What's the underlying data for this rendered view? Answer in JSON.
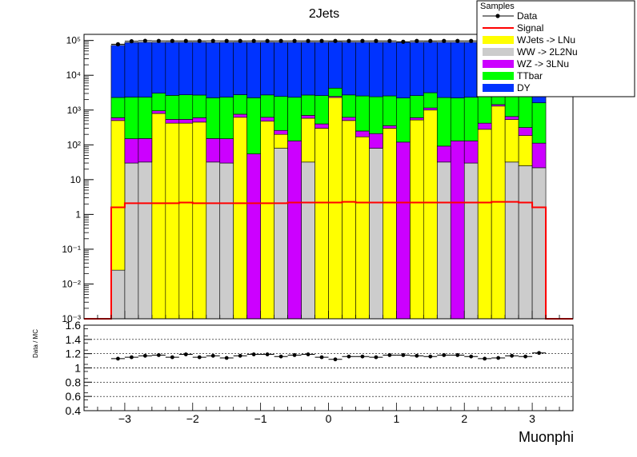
{
  "title": "2Jets",
  "xlabel": "Muonphi",
  "ratio_ylabel": "Data / MC",
  "legend": {
    "header": "Samples",
    "entries": [
      {
        "name": "Data",
        "style": "marker",
        "color": "#000000"
      },
      {
        "name": "Signal",
        "style": "line",
        "color": "#ff0000"
      },
      {
        "name": "WJets -> LNu",
        "style": "fill",
        "color": "#ffff00"
      },
      {
        "name": "WW -> 2L2Nu",
        "style": "fill",
        "color": "#cccccc"
      },
      {
        "name": "WZ -> 3LNu",
        "style": "fill",
        "color": "#cc00ff"
      },
      {
        "name": "TTbar",
        "style": "fill",
        "color": "#00ff00"
      },
      {
        "name": "DY",
        "style": "fill",
        "color": "#0033ff"
      }
    ]
  },
  "colors": {
    "data": "#000000",
    "signal": "#ff0000",
    "wjets": "#ffff00",
    "ww": "#cccccc",
    "wz": "#cc00ff",
    "ttbar": "#00ff00",
    "dy": "#0033ff"
  },
  "chart_data": [
    {
      "type": "stacked_histogram",
      "title": "2Jets",
      "xlabel": "Muonphi",
      "ylabel": "",
      "log_y": true,
      "xlim": [
        -3.6,
        3.6
      ],
      "ylim": [
        0.001,
        150000
      ],
      "x_ticks": [
        -3,
        -2,
        -1,
        0,
        1,
        2,
        3
      ],
      "x_tick_labels": [
        "−3",
        "−2",
        "−1",
        "0",
        "1",
        "2",
        "3"
      ],
      "y_ticks": [
        0.001,
        0.01,
        0.1,
        1,
        10,
        100,
        1000,
        10000,
        100000
      ],
      "y_tick_labels": [
        "10⁻³",
        "10⁻²",
        "10⁻¹",
        "1",
        "10",
        "10²",
        "10³",
        "10⁴",
        "10⁵"
      ],
      "bin_edges": [
        -3.2,
        -3.0,
        -2.8,
        -2.6,
        -2.4,
        -2.2,
        -2.0,
        -1.8,
        -1.6,
        -1.4,
        -1.2,
        -1.0,
        -0.8,
        -0.6,
        -0.4,
        -0.2,
        0.0,
        0.2,
        0.4,
        0.6,
        0.8,
        1.0,
        1.2,
        1.4,
        1.6,
        1.8,
        2.0,
        2.2,
        2.4,
        2.6,
        2.8,
        3.0,
        3.2
      ],
      "stack_order": [
        "WW -> 2L2Nu",
        "WJets -> LNu",
        "WZ -> 3LNu",
        "TTbar",
        "DY"
      ],
      "series": [
        {
          "name": "WW -> 2L2Nu",
          "values": [
            0.025,
            30,
            32,
            0,
            0,
            0,
            0,
            32,
            30,
            0,
            0,
            0,
            80,
            0,
            32,
            0,
            0,
            0,
            0,
            80,
            0,
            0,
            0,
            0,
            32,
            0,
            30,
            0,
            0,
            32,
            25,
            22
          ]
        },
        {
          "name": "WJets -> LNu",
          "values": [
            500,
            0,
            0,
            800,
            420,
            420,
            450,
            0,
            0,
            620,
            0,
            480,
            120,
            0,
            550,
            300,
            2300,
            500,
            170,
            0,
            300,
            0,
            520,
            1000,
            0,
            0,
            0,
            280,
            1300,
            500,
            160,
            0
          ]
        },
        {
          "name": "WZ -> 3LNu",
          "values": [
            100,
            120,
            120,
            150,
            120,
            120,
            150,
            120,
            120,
            140,
            55,
            140,
            60,
            130,
            120,
            100,
            170,
            120,
            80,
            130,
            55,
            120,
            80,
            150,
            60,
            130,
            100,
            140,
            140,
            120,
            130,
            90
          ]
        },
        {
          "name": "TTbar",
          "values": [
            1700,
            2200,
            2200,
            2100,
            2100,
            2200,
            2100,
            2100,
            2200,
            2000,
            2200,
            2100,
            2200,
            2200,
            2000,
            2200,
            1800,
            2100,
            2300,
            2200,
            2200,
            2100,
            2000,
            2000,
            2200,
            2100,
            2200,
            2100,
            2000,
            2100,
            2200,
            1500
          ]
        },
        {
          "name": "DY",
          "values": [
            70000,
            85000,
            86000,
            85000,
            86000,
            86000,
            86000,
            85000,
            86000,
            86000,
            86000,
            86000,
            86000,
            86000,
            86000,
            86000,
            86000,
            86000,
            86000,
            86000,
            86000,
            86000,
            86000,
            86000,
            86000,
            86000,
            86000,
            86000,
            86000,
            86000,
            86000,
            86000
          ]
        },
        {
          "name": "Signal",
          "values": [
            1.6,
            2.1,
            2.1,
            2.1,
            2.1,
            2.2,
            2.1,
            2.1,
            2.1,
            2.1,
            2.1,
            2.1,
            2.1,
            2.2,
            2.2,
            2.2,
            2.2,
            2.3,
            2.2,
            2.2,
            2.2,
            2.2,
            2.2,
            2.2,
            2.2,
            2.2,
            2.2,
            2.2,
            2.3,
            2.3,
            2.2,
            1.6
          ]
        },
        {
          "name": "Data",
          "values": [
            78000,
            95000,
            98000,
            97000,
            97000,
            97000,
            97000,
            97000,
            97000,
            97000,
            97000,
            97000,
            97000,
            97000,
            97000,
            97000,
            97000,
            97000,
            97000,
            97000,
            97000,
            92000,
            97000,
            97000,
            97000,
            97000,
            97000,
            97000,
            97000,
            97000,
            97000,
            97000
          ]
        }
      ]
    },
    {
      "type": "scatter",
      "title": "",
      "xlabel": "Muonphi",
      "ylabel": "Data / MC",
      "xlim": [
        -3.6,
        3.6
      ],
      "ylim": [
        0.4,
        1.6
      ],
      "y_ticks": [
        0.4,
        0.6,
        0.8,
        1.0,
        1.2,
        1.4,
        1.6
      ],
      "y_tick_labels": [
        "0.4",
        "0.6",
        "0.8",
        "1",
        "1.2",
        "1.4",
        "1.6"
      ],
      "grid": "horizontal dashed",
      "x": [
        -3.1,
        -2.9,
        -2.7,
        -2.5,
        -2.3,
        -2.1,
        -1.9,
        -1.7,
        -1.5,
        -1.3,
        -1.1,
        -0.9,
        -0.7,
        -0.5,
        -0.3,
        -0.1,
        0.1,
        0.3,
        0.5,
        0.7,
        0.9,
        1.1,
        1.3,
        1.5,
        1.7,
        1.9,
        2.1,
        2.3,
        2.5,
        2.7,
        2.9,
        3.1
      ],
      "y": [
        1.13,
        1.15,
        1.17,
        1.18,
        1.15,
        1.19,
        1.15,
        1.17,
        1.14,
        1.17,
        1.19,
        1.19,
        1.16,
        1.18,
        1.19,
        1.15,
        1.12,
        1.16,
        1.16,
        1.15,
        1.18,
        1.18,
        1.17,
        1.16,
        1.18,
        1.18,
        1.16,
        1.13,
        1.14,
        1.17,
        1.16,
        1.21
      ]
    }
  ]
}
